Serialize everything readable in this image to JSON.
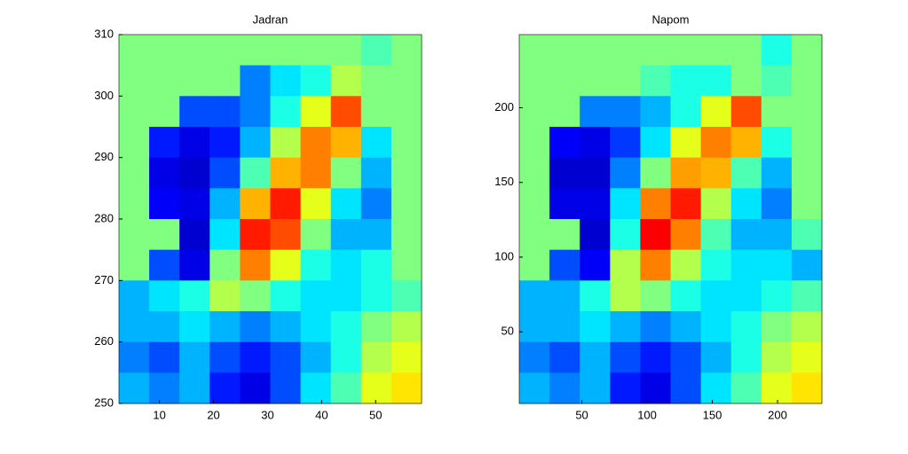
{
  "chart_data": [
    {
      "type": "heatmap",
      "title": "Jadran",
      "xlim": [
        2.5,
        58.5
      ],
      "xticks": [
        10,
        20,
        30,
        40,
        50
      ],
      "ylim": [
        250,
        310
      ],
      "yticks": [
        250,
        260,
        270,
        280,
        290,
        300,
        310
      ],
      "clim": [
        0,
        1
      ],
      "values": [
        [
          0.5,
          0.5,
          0.5,
          0.5,
          0.5,
          0.5,
          0.5,
          0.5,
          0.45,
          0.5
        ],
        [
          0.5,
          0.5,
          0.5,
          0.5,
          0.25,
          0.35,
          0.4,
          0.55,
          0.5,
          0.5
        ],
        [
          0.5,
          0.5,
          0.2,
          0.2,
          0.25,
          0.4,
          0.6,
          0.8,
          0.5,
          0.5
        ],
        [
          0.5,
          0.15,
          0.1,
          0.15,
          0.3,
          0.55,
          0.75,
          0.7,
          0.35,
          0.5
        ],
        [
          0.5,
          0.1,
          0.08,
          0.2,
          0.45,
          0.7,
          0.75,
          0.5,
          0.3,
          0.5
        ],
        [
          0.5,
          0.12,
          0.1,
          0.3,
          0.7,
          0.85,
          0.6,
          0.35,
          0.25,
          0.5
        ],
        [
          0.5,
          0.5,
          0.08,
          0.35,
          0.85,
          0.8,
          0.5,
          0.3,
          0.3,
          0.5
        ],
        [
          0.5,
          0.2,
          0.1,
          0.5,
          0.75,
          0.6,
          0.4,
          0.35,
          0.4,
          0.5
        ],
        [
          0.3,
          0.35,
          0.4,
          0.55,
          0.5,
          0.4,
          0.35,
          0.35,
          0.4,
          0.45
        ],
        [
          0.3,
          0.3,
          0.35,
          0.3,
          0.25,
          0.3,
          0.35,
          0.4,
          0.5,
          0.55
        ],
        [
          0.25,
          0.2,
          0.3,
          0.2,
          0.15,
          0.2,
          0.3,
          0.4,
          0.55,
          0.6
        ],
        [
          0.3,
          0.25,
          0.3,
          0.15,
          0.1,
          0.2,
          0.35,
          0.45,
          0.6,
          0.65
        ]
      ]
    },
    {
      "type": "heatmap",
      "title": "Napom",
      "xlim": [
        2,
        234
      ],
      "xticks": [
        50,
        100,
        150,
        200
      ],
      "ylim": [
        2,
        249
      ],
      "yticks": [
        50,
        100,
        150,
        200
      ],
      "clim": [
        0,
        1
      ],
      "values": [
        [
          0.5,
          0.5,
          0.5,
          0.5,
          0.5,
          0.5,
          0.5,
          0.5,
          0.4,
          0.5
        ],
        [
          0.5,
          0.5,
          0.5,
          0.5,
          0.45,
          0.4,
          0.4,
          0.5,
          0.45,
          0.5
        ],
        [
          0.5,
          0.5,
          0.25,
          0.25,
          0.3,
          0.4,
          0.6,
          0.8,
          0.5,
          0.5
        ],
        [
          0.5,
          0.12,
          0.1,
          0.18,
          0.35,
          0.6,
          0.75,
          0.7,
          0.4,
          0.5
        ],
        [
          0.5,
          0.08,
          0.08,
          0.25,
          0.5,
          0.72,
          0.7,
          0.45,
          0.3,
          0.5
        ],
        [
          0.5,
          0.1,
          0.1,
          0.35,
          0.75,
          0.85,
          0.55,
          0.35,
          0.25,
          0.5
        ],
        [
          0.5,
          0.5,
          0.08,
          0.4,
          0.88,
          0.75,
          0.45,
          0.3,
          0.3,
          0.45
        ],
        [
          0.5,
          0.2,
          0.12,
          0.55,
          0.75,
          0.55,
          0.4,
          0.35,
          0.35,
          0.3
        ],
        [
          0.3,
          0.3,
          0.4,
          0.55,
          0.5,
          0.4,
          0.35,
          0.35,
          0.4,
          0.45
        ],
        [
          0.3,
          0.3,
          0.35,
          0.3,
          0.25,
          0.3,
          0.35,
          0.4,
          0.5,
          0.55
        ],
        [
          0.25,
          0.2,
          0.3,
          0.2,
          0.15,
          0.2,
          0.3,
          0.4,
          0.55,
          0.6
        ],
        [
          0.3,
          0.25,
          0.3,
          0.15,
          0.1,
          0.2,
          0.35,
          0.45,
          0.6,
          0.65
        ]
      ]
    }
  ]
}
